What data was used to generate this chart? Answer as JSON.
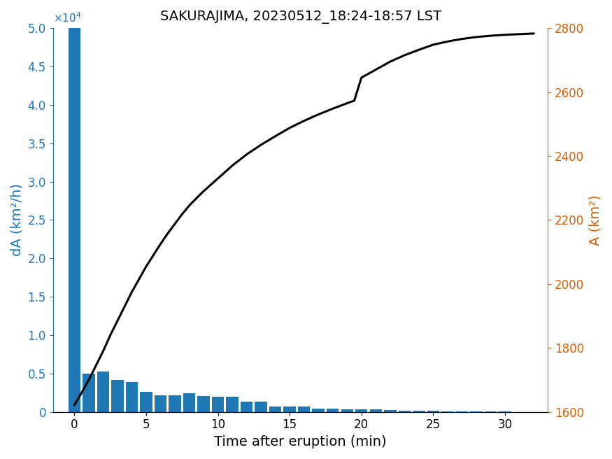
{
  "title": "SAKURAJIMA, 20230512_18:24-18:57 LST",
  "xlabel": "Time after eruption (min)",
  "ylabel_left": "dA (km²/h)",
  "ylabel_right": "A (km²)",
  "bar_color": "#1f77b4",
  "line_color": "#000000",
  "left_axis_color": "#1f77b4",
  "right_axis_color": "#d95f02",
  "bar_times": [
    0,
    1,
    2,
    3,
    4,
    5,
    6,
    7,
    8,
    9,
    10,
    11,
    12,
    13,
    14,
    15,
    16,
    17,
    18,
    19,
    20,
    21,
    22,
    23,
    24,
    25,
    26,
    27,
    28,
    29,
    30,
    31,
    32
  ],
  "bar_values": [
    50000,
    5000,
    5300,
    4200,
    3900,
    2600,
    2200,
    2200,
    2400,
    2100,
    2000,
    2000,
    1300,
    1300,
    700,
    700,
    700,
    450,
    450,
    350,
    350,
    300,
    250,
    180,
    150,
    120,
    80,
    60,
    50,
    40,
    25,
    15,
    10
  ],
  "line_times": [
    0,
    0.5,
    1,
    1.5,
    2,
    2.5,
    3,
    3.5,
    4,
    4.5,
    5,
    5.5,
    6,
    6.5,
    7,
    7.5,
    8,
    8.5,
    9,
    9.5,
    10,
    11,
    12,
    13,
    14,
    15,
    16,
    17,
    18,
    19,
    19.5,
    20,
    21,
    22,
    23,
    24,
    25,
    26,
    27,
    28,
    29,
    30,
    31,
    32
  ],
  "line_values": [
    1622,
    1660,
    1700,
    1745,
    1790,
    1840,
    1885,
    1930,
    1975,
    2015,
    2055,
    2090,
    2125,
    2158,
    2188,
    2218,
    2245,
    2268,
    2290,
    2310,
    2330,
    2370,
    2405,
    2435,
    2462,
    2488,
    2510,
    2530,
    2548,
    2565,
    2573,
    2645,
    2670,
    2695,
    2715,
    2732,
    2748,
    2758,
    2766,
    2772,
    2776,
    2779,
    2781,
    2783
  ],
  "ylim_left": [
    0,
    50000
  ],
  "ylim_right": [
    1600,
    2800
  ],
  "xlim": [
    -1.5,
    33
  ],
  "xticks": [
    0,
    5,
    10,
    15,
    20,
    25,
    30
  ],
  "yticks_left": [
    0,
    0.5,
    1.0,
    1.5,
    2.0,
    2.5,
    3.0,
    3.5,
    4.0,
    4.5,
    5.0
  ],
  "yticks_right": [
    1600,
    1800,
    2000,
    2200,
    2400,
    2600,
    2800
  ],
  "bar_width": 0.85,
  "background_color": "#ffffff"
}
